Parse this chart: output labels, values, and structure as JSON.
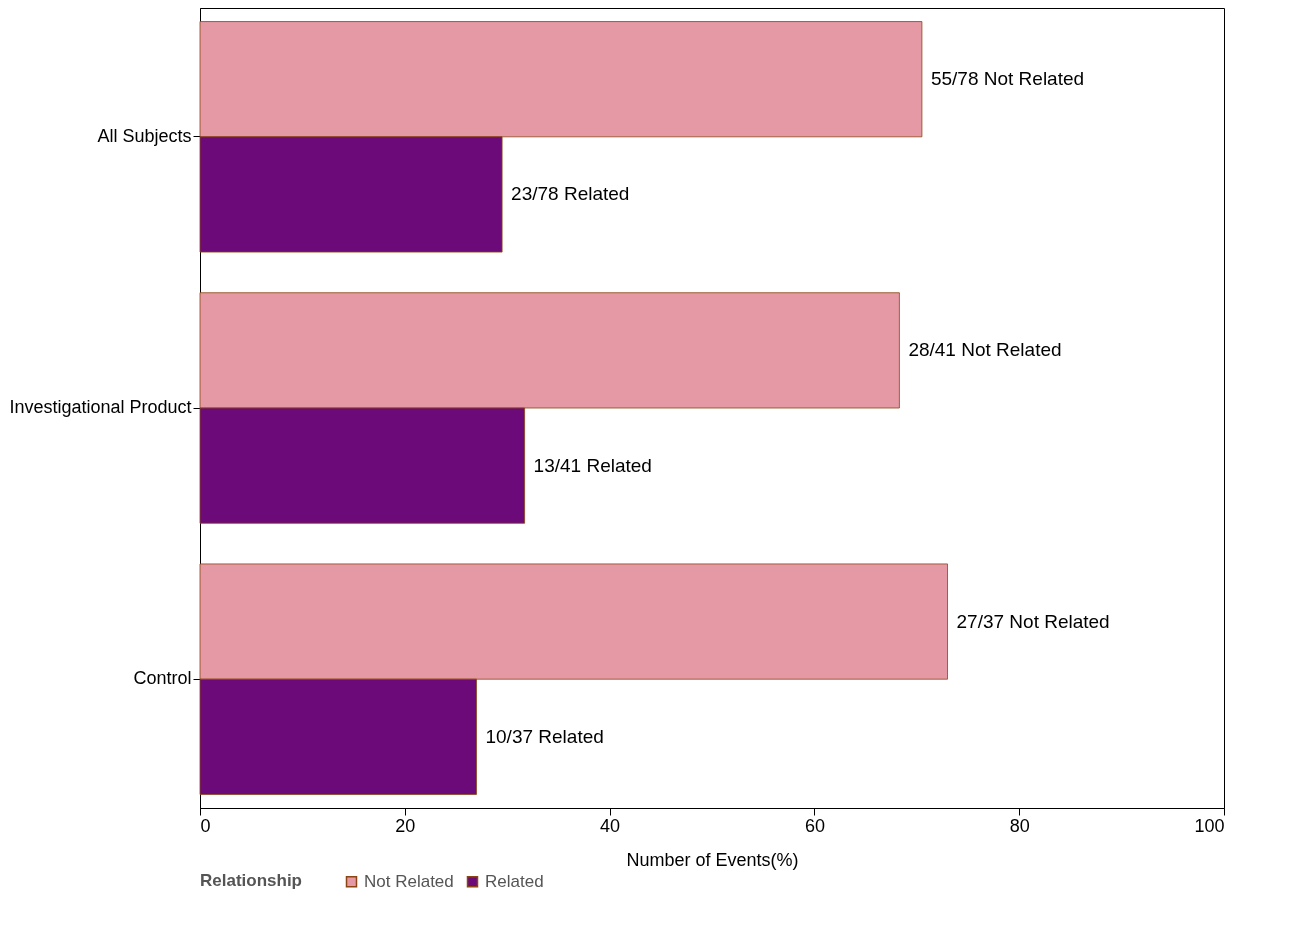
{
  "chart_data": {
    "type": "bar",
    "orientation": "horizontal",
    "xlabel": "Number of Events(%)",
    "legend_title": "Relationship",
    "legend": "bottom left",
    "categories": [
      "All Subjects",
      "Investigational Product",
      "Control"
    ],
    "xlim": [
      0,
      100
    ],
    "xticks": [
      0,
      20,
      40,
      60,
      80,
      100
    ],
    "series": [
      {
        "name": "Not Related",
        "color": "#e499a5",
        "values": [
          70.5,
          68.3,
          73.0
        ],
        "value_labels": [
          "55/78 Not Related",
          "28/41 Not Related",
          "27/37 Not Related"
        ]
      },
      {
        "name": "Related",
        "color": "#6b0a78",
        "values": [
          29.5,
          31.7,
          27.0
        ],
        "value_labels": [
          "23/78 Related",
          "13/41 Related",
          "10/37 Related"
        ]
      }
    ]
  }
}
